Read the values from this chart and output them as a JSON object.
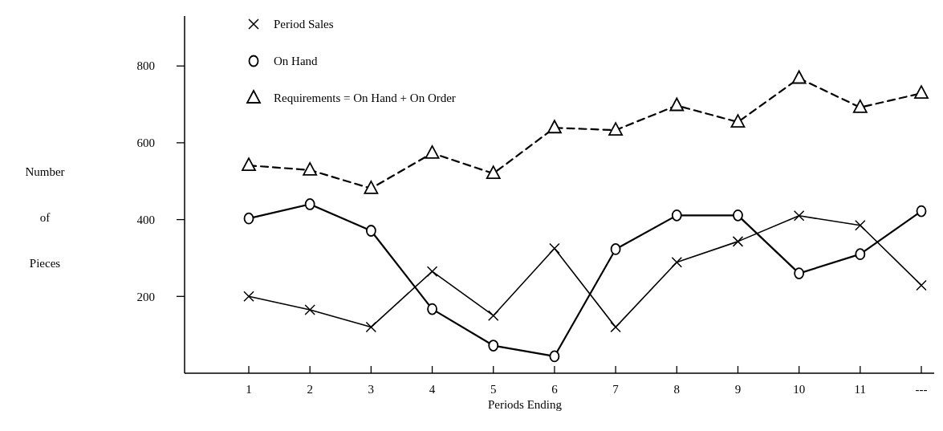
{
  "chart_data": {
    "type": "line",
    "xlabel": "Periods Ending",
    "ylabel": "Number of Pieces",
    "categories": [
      "1",
      "2",
      "3",
      "4",
      "5",
      "6",
      "7",
      "8",
      "9",
      "10",
      "11",
      "---"
    ],
    "ylim": [
      0,
      930
    ],
    "yticks": [
      200,
      400,
      600,
      800
    ],
    "legend": "top left",
    "grid": false,
    "series": [
      {
        "name": "Period Sales",
        "color": "#000000",
        "marker": "cross",
        "line_style": "solid",
        "values": [
          200,
          165,
          120,
          265,
          150,
          325,
          120,
          289,
          343,
          410,
          385,
          229
        ]
      },
      {
        "name": "On Hand",
        "color": "#000000",
        "marker": "circle",
        "line_style": "solid",
        "values": [
          403,
          440,
          371,
          167,
          72,
          44,
          323,
          411,
          411,
          260,
          310,
          422
        ]
      },
      {
        "name": "Requirements = On Hand + On Order",
        "color": "#000000",
        "marker": "triangle",
        "line_style": "dashed",
        "values": [
          541,
          529,
          481,
          573,
          520,
          639,
          633,
          697,
          654,
          768,
          692,
          729
        ]
      }
    ]
  }
}
